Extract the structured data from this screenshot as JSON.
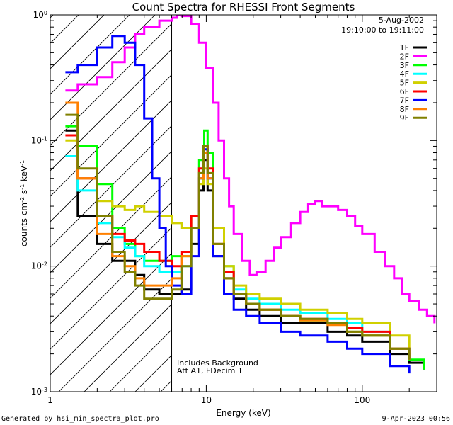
{
  "chart_data": {
    "type": "line",
    "title": "Count Spectra for RHESSI Front Segments",
    "xlabel": "Energy (keV)",
    "ylabel_parts": [
      "counts cm",
      "-2",
      " s",
      "-1",
      " keV",
      "-1"
    ],
    "xscale": "log",
    "yscale": "log",
    "xlim": [
      1,
      300
    ],
    "ylim": [
      0.001,
      1
    ],
    "x_ticks": [
      1,
      10,
      100
    ],
    "x_tick_labels": [
      "1",
      "10",
      "100"
    ],
    "y_ticks": [
      0.001,
      0.01,
      0.1,
      1
    ],
    "y_tick_labels": [
      {
        "base": "10",
        "exp": "-3"
      },
      {
        "base": "10",
        "exp": "-2"
      },
      {
        "base": "10",
        "exp": "-1"
      },
      {
        "base": "10",
        "exp": "0"
      }
    ],
    "annotation_date": "5-Aug-2002",
    "annotation_time": "19:10:00 to 19:11:00",
    "note_lines": [
      "Includes Background",
      "Att A1, FDecim 1"
    ],
    "shaded_below_keV": 6,
    "legend_position": "top-right",
    "series": [
      {
        "name": "1F",
        "color": "#000000",
        "points": [
          [
            1.25,
            0.12
          ],
          [
            1.5,
            0.025
          ],
          [
            2,
            0.015
          ],
          [
            2.5,
            0.011
          ],
          [
            3,
            0.011
          ],
          [
            3.5,
            0.0085
          ],
          [
            4,
            0.0065
          ],
          [
            5,
            0.006
          ],
          [
            6,
            0.006
          ],
          [
            7,
            0.0065
          ],
          [
            8,
            0.015
          ],
          [
            9,
            0.04
          ],
          [
            9.6,
            0.07
          ],
          [
            10.2,
            0.04
          ],
          [
            11,
            0.012
          ],
          [
            13,
            0.008
          ],
          [
            15,
            0.0055
          ],
          [
            18,
            0.0045
          ],
          [
            22,
            0.004
          ],
          [
            30,
            0.0035
          ],
          [
            40,
            0.0035
          ],
          [
            60,
            0.003
          ],
          [
            80,
            0.0028
          ],
          [
            100,
            0.0025
          ],
          [
            150,
            0.002
          ],
          [
            200,
            0.0017
          ],
          [
            250,
            0.0015
          ]
        ]
      },
      {
        "name": "2F",
        "color": "#ff00ff",
        "points": [
          [
            1.25,
            0.25
          ],
          [
            1.5,
            0.28
          ],
          [
            2,
            0.32
          ],
          [
            2.5,
            0.42
          ],
          [
            3,
            0.55
          ],
          [
            3.5,
            0.7
          ],
          [
            4,
            0.8
          ],
          [
            5,
            0.9
          ],
          [
            6,
            0.95
          ],
          [
            6.5,
            1.0
          ],
          [
            7,
            0.98
          ],
          [
            8,
            0.85
          ],
          [
            9,
            0.6
          ],
          [
            10,
            0.38
          ],
          [
            11,
            0.2
          ],
          [
            12,
            0.1
          ],
          [
            13,
            0.05
          ],
          [
            14,
            0.03
          ],
          [
            15,
            0.018
          ],
          [
            17,
            0.011
          ],
          [
            19,
            0.0085
          ],
          [
            21,
            0.009
          ],
          [
            24,
            0.011
          ],
          [
            27,
            0.014
          ],
          [
            30,
            0.017
          ],
          [
            35,
            0.022
          ],
          [
            40,
            0.027
          ],
          [
            45,
            0.031
          ],
          [
            50,
            0.033
          ],
          [
            55,
            0.03
          ],
          [
            60,
            0.03
          ],
          [
            70,
            0.028
          ],
          [
            80,
            0.025
          ],
          [
            90,
            0.021
          ],
          [
            100,
            0.018
          ],
          [
            120,
            0.013
          ],
          [
            140,
            0.01
          ],
          [
            160,
            0.008
          ],
          [
            180,
            0.006
          ],
          [
            200,
            0.0053
          ],
          [
            230,
            0.0045
          ],
          [
            260,
            0.004
          ],
          [
            290,
            0.0035
          ]
        ]
      },
      {
        "name": "3F",
        "color": "#00ff00",
        "points": [
          [
            1.25,
            0.13
          ],
          [
            1.5,
            0.09
          ],
          [
            2,
            0.045
          ],
          [
            2.5,
            0.02
          ],
          [
            3,
            0.015
          ],
          [
            3.5,
            0.012
          ],
          [
            4,
            0.011
          ],
          [
            5,
            0.011
          ],
          [
            6,
            0.012
          ],
          [
            7,
            0.012
          ],
          [
            8,
            0.025
          ],
          [
            9,
            0.07
          ],
          [
            9.7,
            0.12
          ],
          [
            10.2,
            0.08
          ],
          [
            11,
            0.02
          ],
          [
            13,
            0.01
          ],
          [
            15,
            0.006
          ],
          [
            18,
            0.005
          ],
          [
            22,
            0.0045
          ],
          [
            30,
            0.004
          ],
          [
            40,
            0.0037
          ],
          [
            60,
            0.0035
          ],
          [
            80,
            0.003
          ],
          [
            100,
            0.0028
          ],
          [
            150,
            0.0022
          ],
          [
            200,
            0.0018
          ],
          [
            250,
            0.0015
          ]
        ]
      },
      {
        "name": "4F",
        "color": "#00ffff",
        "points": [
          [
            1.25,
            0.075
          ],
          [
            1.5,
            0.04
          ],
          [
            2,
            0.022
          ],
          [
            2.5,
            0.017
          ],
          [
            3,
            0.014
          ],
          [
            3.5,
            0.012
          ],
          [
            4,
            0.01
          ],
          [
            5,
            0.009
          ],
          [
            6,
            0.009
          ],
          [
            7,
            0.01
          ],
          [
            8,
            0.02
          ],
          [
            9,
            0.05
          ],
          [
            9.6,
            0.08
          ],
          [
            10.2,
            0.05
          ],
          [
            11,
            0.015
          ],
          [
            13,
            0.009
          ],
          [
            15,
            0.0065
          ],
          [
            18,
            0.0055
          ],
          [
            22,
            0.005
          ],
          [
            30,
            0.0045
          ],
          [
            40,
            0.0042
          ],
          [
            60,
            0.0038
          ],
          [
            80,
            0.0035
          ],
          [
            100,
            0.003
          ],
          [
            150,
            0.0022
          ],
          [
            200,
            0.0018
          ]
        ]
      },
      {
        "name": "5F",
        "color": "#d0d000",
        "points": [
          [
            1.25,
            0.1
          ],
          [
            1.5,
            0.05
          ],
          [
            2,
            0.033
          ],
          [
            2.5,
            0.03
          ],
          [
            3,
            0.028
          ],
          [
            3.5,
            0.03
          ],
          [
            4,
            0.027
          ],
          [
            5,
            0.025
          ],
          [
            6,
            0.022
          ],
          [
            7,
            0.02
          ],
          [
            8,
            0.025
          ],
          [
            9,
            0.045
          ],
          [
            9.6,
            0.06
          ],
          [
            10.2,
            0.045
          ],
          [
            11,
            0.02
          ],
          [
            13,
            0.01
          ],
          [
            15,
            0.007
          ],
          [
            18,
            0.006
          ],
          [
            22,
            0.0055
          ],
          [
            30,
            0.005
          ],
          [
            40,
            0.0045
          ],
          [
            60,
            0.0042
          ],
          [
            80,
            0.0038
          ],
          [
            100,
            0.0035
          ],
          [
            150,
            0.0028
          ],
          [
            200,
            0.0022
          ]
        ]
      },
      {
        "name": "6F",
        "color": "#ff0000",
        "points": [
          [
            1.25,
            0.11
          ],
          [
            1.5,
            0.05
          ],
          [
            2,
            0.025
          ],
          [
            2.5,
            0.018
          ],
          [
            3,
            0.016
          ],
          [
            3.5,
            0.015
          ],
          [
            4,
            0.013
          ],
          [
            5,
            0.011
          ],
          [
            6,
            0.01
          ],
          [
            7,
            0.013
          ],
          [
            8,
            0.025
          ],
          [
            9,
            0.06
          ],
          [
            9.6,
            0.09
          ],
          [
            10.2,
            0.06
          ],
          [
            11,
            0.015
          ],
          [
            13,
            0.009
          ],
          [
            15,
            0.006
          ],
          [
            18,
            0.005
          ],
          [
            22,
            0.0045
          ],
          [
            30,
            0.004
          ],
          [
            40,
            0.0038
          ],
          [
            60,
            0.0035
          ],
          [
            80,
            0.0032
          ],
          [
            100,
            0.003
          ],
          [
            150,
            0.0022
          ],
          [
            200,
            0.0018
          ]
        ]
      },
      {
        "name": "7F",
        "color": "#0000ff",
        "points": [
          [
            1.25,
            0.35
          ],
          [
            1.5,
            0.4
          ],
          [
            2,
            0.55
          ],
          [
            2.5,
            0.68
          ],
          [
            3,
            0.6
          ],
          [
            3.5,
            0.4
          ],
          [
            4,
            0.15
          ],
          [
            4.5,
            0.05
          ],
          [
            5,
            0.02
          ],
          [
            5.5,
            0.01
          ],
          [
            6,
            0.007
          ],
          [
            7,
            0.006
          ],
          [
            8,
            0.012
          ],
          [
            9,
            0.05
          ],
          [
            9.6,
            0.085
          ],
          [
            10.2,
            0.05
          ],
          [
            11,
            0.012
          ],
          [
            13,
            0.006
          ],
          [
            15,
            0.0045
          ],
          [
            18,
            0.004
          ],
          [
            22,
            0.0035
          ],
          [
            30,
            0.003
          ],
          [
            40,
            0.0028
          ],
          [
            60,
            0.0025
          ],
          [
            80,
            0.0022
          ],
          [
            100,
            0.002
          ],
          [
            150,
            0.0016
          ],
          [
            200,
            0.0014
          ]
        ]
      },
      {
        "name": "8F",
        "color": "#ff8000",
        "points": [
          [
            1.25,
            0.2
          ],
          [
            1.5,
            0.05
          ],
          [
            2,
            0.018
          ],
          [
            2.5,
            0.012
          ],
          [
            3,
            0.01
          ],
          [
            3.5,
            0.008
          ],
          [
            4,
            0.007
          ],
          [
            5,
            0.007
          ],
          [
            6,
            0.008
          ],
          [
            7,
            0.012
          ],
          [
            8,
            0.02
          ],
          [
            9,
            0.05
          ],
          [
            9.6,
            0.08
          ],
          [
            10.2,
            0.05
          ],
          [
            11,
            0.015
          ],
          [
            13,
            0.008
          ],
          [
            15,
            0.006
          ],
          [
            18,
            0.005
          ],
          [
            22,
            0.0045
          ],
          [
            30,
            0.004
          ],
          [
            40,
            0.0037
          ],
          [
            60,
            0.0034
          ],
          [
            80,
            0.003
          ],
          [
            100,
            0.0028
          ],
          [
            150,
            0.0022
          ],
          [
            200,
            0.0018
          ]
        ]
      },
      {
        "name": "9F",
        "color": "#808000",
        "points": [
          [
            1.25,
            0.16
          ],
          [
            1.5,
            0.06
          ],
          [
            2,
            0.025
          ],
          [
            2.5,
            0.013
          ],
          [
            3,
            0.009
          ],
          [
            3.5,
            0.007
          ],
          [
            4,
            0.0055
          ],
          [
            5,
            0.0055
          ],
          [
            6,
            0.0065
          ],
          [
            7,
            0.01
          ],
          [
            8,
            0.02
          ],
          [
            9,
            0.055
          ],
          [
            9.6,
            0.09
          ],
          [
            10.2,
            0.055
          ],
          [
            11,
            0.015
          ],
          [
            13,
            0.008
          ],
          [
            15,
            0.006
          ],
          [
            18,
            0.005
          ],
          [
            22,
            0.0045
          ],
          [
            30,
            0.004
          ],
          [
            40,
            0.0038
          ],
          [
            60,
            0.0035
          ],
          [
            80,
            0.003
          ],
          [
            100,
            0.0028
          ],
          [
            150,
            0.0022
          ],
          [
            200,
            0.0018
          ]
        ]
      }
    ]
  },
  "footer": {
    "left": "Generated by hsi_min_spectra_plot.pro",
    "right": "9-Apr-2023 00:56"
  }
}
